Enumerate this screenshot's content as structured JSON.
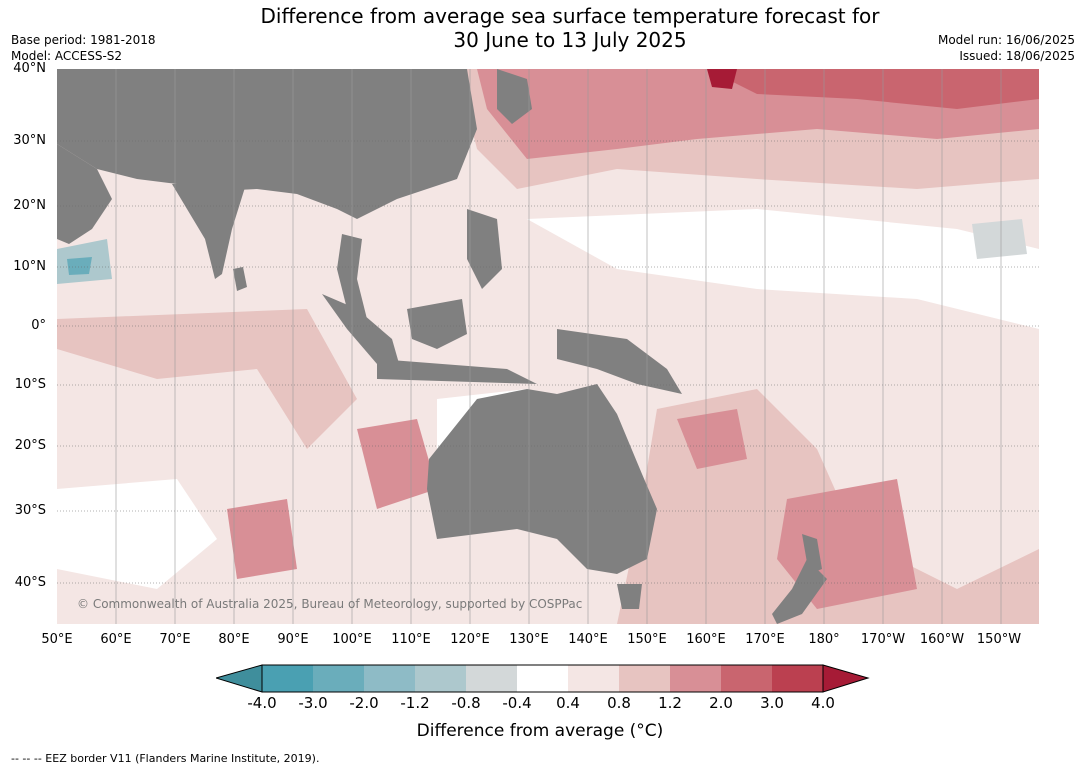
{
  "title_line1": "Difference from average sea surface temperature forecast for",
  "title_line2": "30 June to 13 July 2025",
  "base_period": "Base period: 1981-2018",
  "model": "Model: ACCESS-S2",
  "model_run": "Model run: 16/06/2025",
  "issued": "Issued: 18/06/2025",
  "copyright": "© Commonwealth of Australia 2025, Bureau of Meteorology, supported by COSPPac",
  "latitude_labels": [
    "40°N",
    "30°N",
    "20°N",
    "10°N",
    "0°",
    "10°S",
    "20°S",
    "30°S",
    "40°S"
  ],
  "longitude_labels": [
    "50°E",
    "60°E",
    "70°E",
    "80°E",
    "90°E",
    "100°E",
    "110°E",
    "120°E",
    "130°E",
    "140°E",
    "150°E",
    "160°E",
    "170°E",
    "180°",
    "170°W",
    "160°W",
    "150°W"
  ],
  "colorbar": {
    "title": "Difference from average (°C)",
    "tick_labels": [
      "-4.0",
      "-3.0",
      "-2.0",
      "-1.2",
      "-0.8",
      "-0.4",
      "0.4",
      "0.8",
      "1.2",
      "2.0",
      "3.0",
      "4.0"
    ],
    "colors": [
      "#3f8e9c",
      "#4aa0b2",
      "#6aadbb",
      "#8ebbc6",
      "#adc8cd",
      "#d3d8d9",
      "#ffffff",
      "#f4e6e4",
      "#e7c4c1",
      "#d88f96",
      "#c9656f",
      "#bb4050",
      "#a61b36"
    ]
  },
  "land_color": "#808080",
  "footer": "--  --  -- EEZ border V11 (Flanders Marine Institute, 2019)."
}
